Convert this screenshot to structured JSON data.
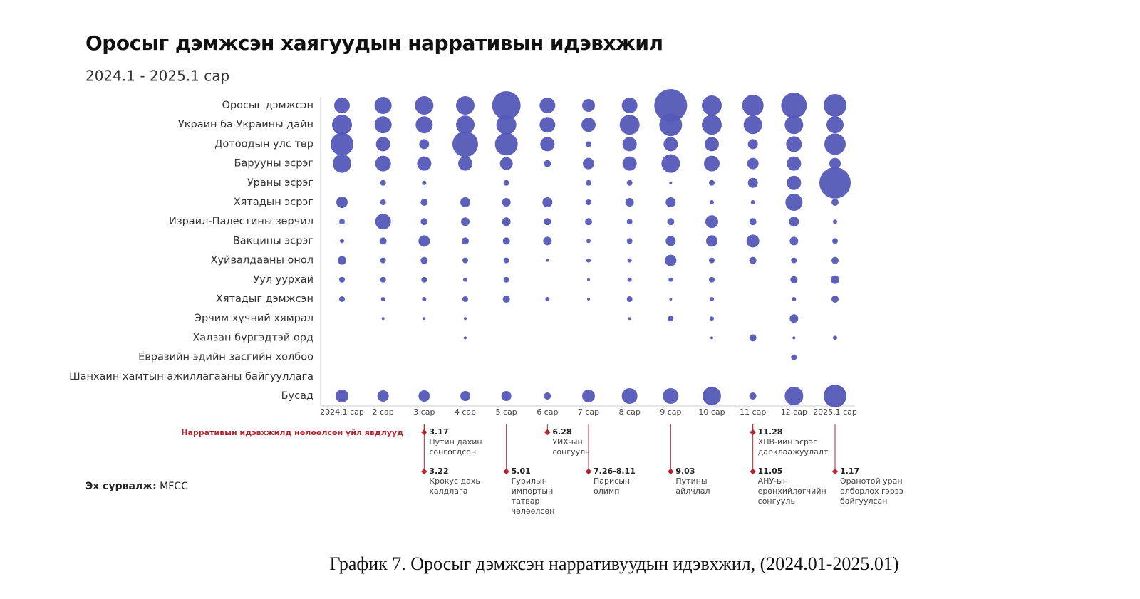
{
  "chart_data": {
    "type": "bubble",
    "title": "Оросыг дэмжсэн хаягуудын нарративын идэвхжил",
    "subtitle": "2024.1 - 2025.1 сар",
    "color": "#5558b8",
    "categories": [
      "2024.1 сар",
      "2 сар",
      "3 сар",
      "4 сар",
      "5 сар",
      "6 сар",
      "7 сар",
      "8 сар",
      "9 сар",
      "10 сар",
      "11 сар",
      "12 сар",
      "2025.1 сар"
    ],
    "series": [
      {
        "name": "Оросыг дэмжсэн",
        "values": [
          11,
          12,
          13,
          13,
          20,
          11,
          9,
          11,
          23,
          14,
          15,
          18,
          16
        ]
      },
      {
        "name": "Украин ба Украины дайн",
        "values": [
          14,
          12,
          12,
          13,
          14,
          11,
          10,
          14,
          16,
          14,
          13,
          13,
          12
        ]
      },
      {
        "name": "Дотоодын улс төр",
        "values": [
          16,
          10,
          7,
          18,
          16,
          10,
          4,
          10,
          10,
          10,
          7,
          11,
          15
        ]
      },
      {
        "name": "Барууны эсрэг",
        "values": [
          13,
          11,
          10,
          10,
          9,
          5,
          8,
          10,
          13,
          11,
          8,
          10,
          8
        ]
      },
      {
        "name": "Ураны эсрэг",
        "values": [
          null,
          4,
          3,
          null,
          4,
          null,
          4,
          4,
          2,
          4,
          7,
          10,
          22
        ]
      },
      {
        "name": "Хятадын эсрэг",
        "values": [
          8,
          4,
          5,
          7,
          6,
          7,
          4,
          6,
          7,
          3,
          3,
          12,
          5
        ]
      },
      {
        "name": "Израил-Палестины зөрчил",
        "values": [
          4,
          11,
          5,
          6,
          6,
          5,
          5,
          4,
          5,
          9,
          5,
          7,
          3
        ]
      },
      {
        "name": "Вакцины эсрэг",
        "values": [
          3,
          5,
          8,
          5,
          5,
          6,
          3,
          4,
          7,
          8,
          9,
          6,
          4
        ]
      },
      {
        "name": "Хуйвалдааны онол",
        "values": [
          6,
          4,
          5,
          4,
          4,
          2,
          3,
          3,
          8,
          4,
          5,
          4,
          5
        ]
      },
      {
        "name": "Уул уурхай",
        "values": [
          4,
          4,
          4,
          3,
          4,
          null,
          2,
          3,
          3,
          4,
          null,
          5,
          6
        ]
      },
      {
        "name": "Хятадыг дэмжсэн",
        "values": [
          4,
          3,
          3,
          4,
          5,
          3,
          2,
          4,
          2,
          3,
          null,
          3,
          5
        ]
      },
      {
        "name": "Эрчим хүчний хямрал",
        "values": [
          null,
          2,
          2,
          2,
          null,
          null,
          null,
          2,
          4,
          3,
          null,
          6,
          null
        ]
      },
      {
        "name": "Халзан бүргэдтэй орд",
        "values": [
          null,
          null,
          null,
          2,
          null,
          null,
          null,
          null,
          null,
          2,
          5,
          2,
          3
        ]
      },
      {
        "name": "Евразийн эдийн засгийн холбоо",
        "values": [
          null,
          null,
          null,
          null,
          null,
          null,
          null,
          null,
          null,
          null,
          null,
          4,
          null
        ]
      },
      {
        "name": "Шанхайн хамтын ажиллагааны байгууллага",
        "values": [
          null,
          null,
          null,
          null,
          null,
          null,
          null,
          null,
          null,
          null,
          null,
          null,
          null
        ]
      },
      {
        "name": "Бусад",
        "values": [
          9,
          8,
          8,
          7,
          7,
          5,
          9,
          11,
          11,
          13,
          5,
          13,
          16
        ]
      }
    ],
    "events_heading": "Нарративын идэвхжилд нөлөөлсөн үйл явдлууд",
    "events": [
      {
        "date": "3.17",
        "text": [
          "Путин дахин",
          "сонгогдсон"
        ]
      },
      {
        "date": "3.22",
        "text": [
          "Крокус дахь",
          "халдлага"
        ]
      },
      {
        "date": "5.01",
        "text": [
          "Гурилын",
          "импортын",
          "татвар",
          "чөлөөлсөн"
        ]
      },
      {
        "date": "6.28",
        "text": [
          "УИХ-ын",
          "сонгууль"
        ]
      },
      {
        "date": "7.26-8.11",
        "text": [
          "Парисын",
          "олимп"
        ]
      },
      {
        "date": "9.03",
        "text": [
          "Путины",
          "айлчлал"
        ]
      },
      {
        "date": "11.28",
        "text": [
          "ХПВ-ийн эсрэг",
          "дарклаажуулалт"
        ]
      },
      {
        "date": "11.05",
        "text": [
          "АНУ-ын",
          "ерөнхийлөгчийн",
          "сонгууль"
        ]
      },
      {
        "date": "1.17",
        "text": [
          "Оранотой уран",
          "олборлох гэрээ",
          "байгуулсан"
        ]
      }
    ],
    "source_label": "Эх сурвалж:",
    "source": "MFCC"
  },
  "caption": "График 7. Оросыг дэмжсэн нарративуудын идэвхжил, (2024.01-2025.01)"
}
